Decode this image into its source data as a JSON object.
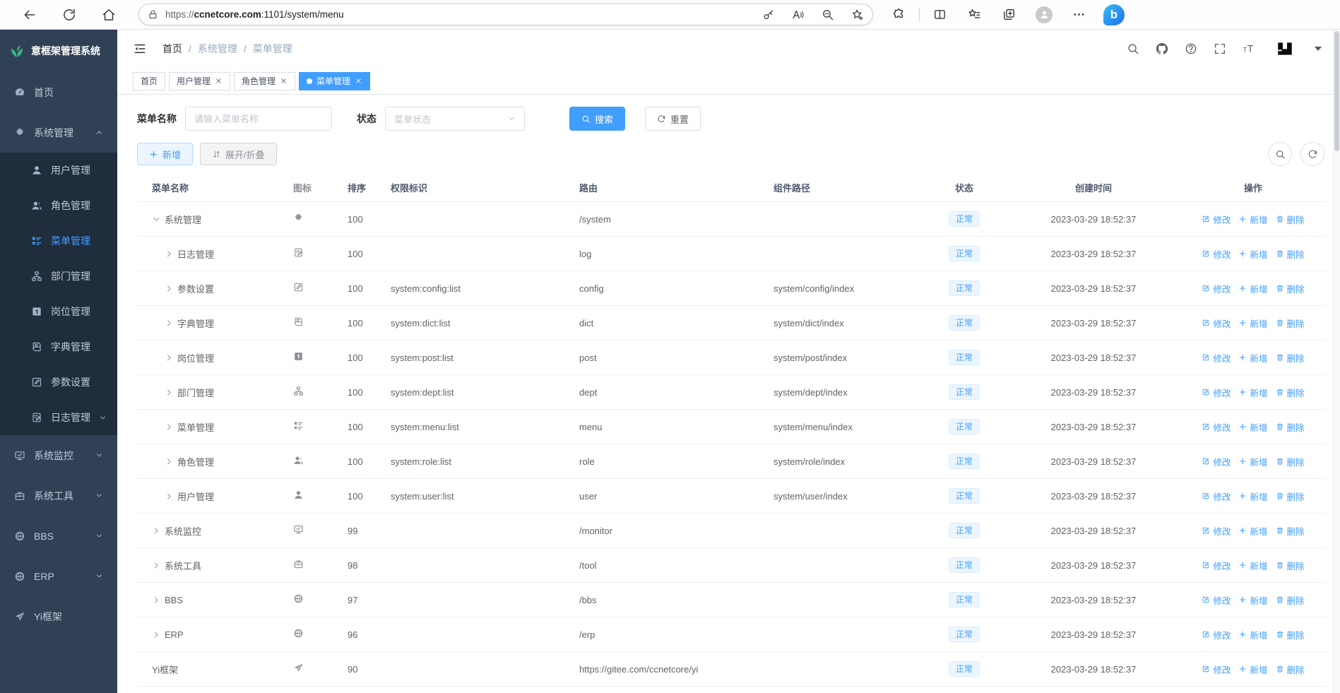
{
  "browser": {
    "url_scheme": "https://",
    "url_host": "ccnetcore.com",
    "url_rest": ":1101/system/menu",
    "nav_icons": [
      "back",
      "reload",
      "home"
    ],
    "pill_icons": [
      "lock",
      "key",
      "read-aloud",
      "zoom-out",
      "favorite-add"
    ],
    "right_icons": [
      "extensions",
      "split-screen",
      "favorites",
      "collections",
      "profile",
      "more",
      "bing"
    ]
  },
  "sidebar": {
    "logo_text": "意框架管理系统",
    "logo_icon": "leaf",
    "items": [
      {
        "label": "首页",
        "icon": "gauge",
        "kind": "item"
      },
      {
        "label": "系统管理",
        "icon": "gear",
        "kind": "item",
        "chevron": "up"
      },
      {
        "label": "用户管理",
        "icon": "user",
        "kind": "sub"
      },
      {
        "label": "角色管理",
        "icon": "users",
        "kind": "sub"
      },
      {
        "label": "菜单管理",
        "icon": "tree",
        "kind": "sub",
        "active": true
      },
      {
        "label": "部门管理",
        "icon": "org",
        "kind": "sub"
      },
      {
        "label": "岗位管理",
        "icon": "badge",
        "kind": "sub"
      },
      {
        "label": "字典管理",
        "icon": "book",
        "kind": "sub"
      },
      {
        "label": "参数设置",
        "icon": "edit",
        "kind": "sub"
      },
      {
        "label": "日志管理",
        "icon": "log",
        "kind": "sub",
        "chevron": "down"
      },
      {
        "label": "系统监控",
        "icon": "monitor",
        "kind": "item",
        "chevron": "down"
      },
      {
        "label": "系统工具",
        "icon": "tool",
        "kind": "item",
        "chevron": "down"
      },
      {
        "label": "BBS",
        "icon": "globe",
        "kind": "item",
        "chevron": "down"
      },
      {
        "label": "ERP",
        "icon": "globe",
        "kind": "item",
        "chevron": "down"
      },
      {
        "label": "Yi框架",
        "icon": "plane",
        "kind": "item"
      }
    ]
  },
  "header": {
    "breadcrumb": [
      "首页",
      "系统管理",
      "菜单管理"
    ],
    "tool_icons": [
      "search",
      "github",
      "help",
      "fullscreen",
      "font-size",
      "yi-logo",
      "caret-down"
    ]
  },
  "tabs": [
    {
      "label": "首页",
      "closable": false,
      "active": false
    },
    {
      "label": "用户管理",
      "closable": true,
      "active": false
    },
    {
      "label": "角色管理",
      "closable": true,
      "active": false
    },
    {
      "label": "菜单管理",
      "closable": true,
      "active": true
    }
  ],
  "filters": {
    "name_label": "菜单名称",
    "name_placeholder": "请输入菜单名称",
    "status_label": "状态",
    "status_placeholder": "菜单状态",
    "search_label": "搜索",
    "reset_label": "重置"
  },
  "toolbar": {
    "add_label": "新增",
    "expand_label": "展开/折叠",
    "right_icons": [
      "search",
      "refresh"
    ]
  },
  "table": {
    "columns": [
      "菜单名称",
      "图标",
      "排序",
      "权限标识",
      "路由",
      "组件路径",
      "状态",
      "创建时间",
      "操作"
    ],
    "status_label": "正常",
    "created_time": "2023-03-29 18:52:37",
    "actions": [
      {
        "label": "修改",
        "icon": "edit-pen"
      },
      {
        "label": "新增",
        "icon": "plus"
      },
      {
        "label": "删除",
        "icon": "trash"
      }
    ],
    "rows": [
      {
        "name": "系统管理",
        "icon": "gear",
        "sort": "100",
        "perm": "",
        "route": "/system",
        "comp": "",
        "indent": 0,
        "expand": "down"
      },
      {
        "name": "日志管理",
        "icon": "log",
        "sort": "100",
        "perm": "",
        "route": "log",
        "comp": "",
        "indent": 1,
        "expand": "right"
      },
      {
        "name": "参数设置",
        "icon": "edit",
        "sort": "100",
        "perm": "system:config:list",
        "route": "config",
        "comp": "system/config/index",
        "indent": 1,
        "expand": "right"
      },
      {
        "name": "字典管理",
        "icon": "book",
        "sort": "100",
        "perm": "system:dict:list",
        "route": "dict",
        "comp": "system/dict/index",
        "indent": 1,
        "expand": "right"
      },
      {
        "name": "岗位管理",
        "icon": "badge",
        "sort": "100",
        "perm": "system:post:list",
        "route": "post",
        "comp": "system/post/index",
        "indent": 1,
        "expand": "right"
      },
      {
        "name": "部门管理",
        "icon": "org",
        "sort": "100",
        "perm": "system:dept:list",
        "route": "dept",
        "comp": "system/dept/index",
        "indent": 1,
        "expand": "right"
      },
      {
        "name": "菜单管理",
        "icon": "tree",
        "sort": "100",
        "perm": "system:menu:list",
        "route": "menu",
        "comp": "system/menu/index",
        "indent": 1,
        "expand": "right"
      },
      {
        "name": "角色管理",
        "icon": "users",
        "sort": "100",
        "perm": "system:role:list",
        "route": "role",
        "comp": "system/role/index",
        "indent": 1,
        "expand": "right"
      },
      {
        "name": "用户管理",
        "icon": "user",
        "sort": "100",
        "perm": "system:user:list",
        "route": "user",
        "comp": "system/user/index",
        "indent": 1,
        "expand": "right"
      },
      {
        "name": "系统监控",
        "icon": "monitor",
        "sort": "99",
        "perm": "",
        "route": "/monitor",
        "comp": "",
        "indent": 0,
        "expand": "right"
      },
      {
        "name": "系统工具",
        "icon": "tool",
        "sort": "98",
        "perm": "",
        "route": "/tool",
        "comp": "",
        "indent": 0,
        "expand": "right"
      },
      {
        "name": "BBS",
        "icon": "globe",
        "sort": "97",
        "perm": "",
        "route": "/bbs",
        "comp": "",
        "indent": 0,
        "expand": "right"
      },
      {
        "name": "ERP",
        "icon": "globe",
        "sort": "96",
        "perm": "",
        "route": "/erp",
        "comp": "",
        "indent": 0,
        "expand": "right"
      },
      {
        "name": "Yi框架",
        "icon": "plane",
        "sort": "90",
        "perm": "",
        "route": "https://gitee.com/ccnetcore/yi",
        "comp": "",
        "indent": 0,
        "expand": "none"
      }
    ]
  },
  "colors": {
    "accent": "#409eff",
    "sidebar_bg": "#304156",
    "submenu_bg": "#1f2d3d",
    "status_badge_bg": "#ecf5ff",
    "logo_green": "#3ab57f"
  }
}
